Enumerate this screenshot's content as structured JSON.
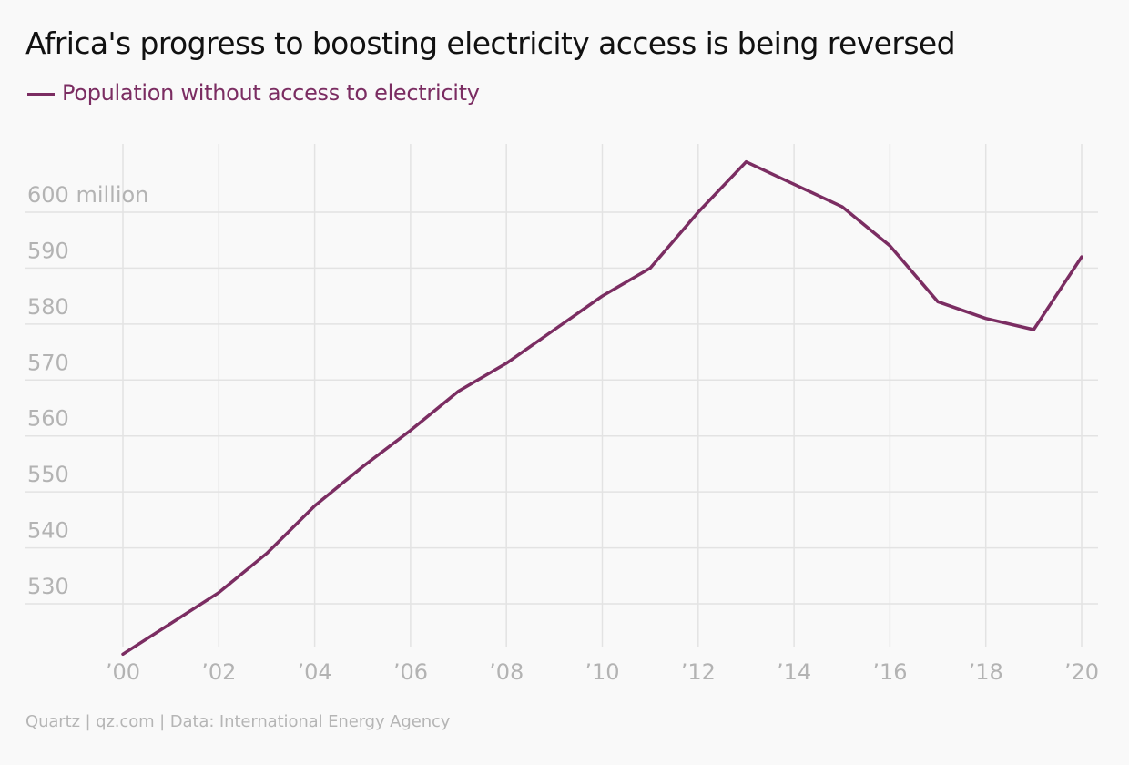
{
  "title": "Africa's progress to boosting electricity access is being reversed",
  "footer": "Quartz | qz.com | Data: International Energy Agency",
  "colors": {
    "series": "#7b2d62",
    "grid": "#e3e3e3",
    "tick_label": "#b3b3b3",
    "background": "#f9f9f9"
  },
  "chart_data": {
    "type": "line",
    "title": "Africa's progress to boosting electricity access is being reversed",
    "xlabel": "",
    "ylabel": "",
    "x": [
      2000,
      2001,
      2002,
      2003,
      2004,
      2005,
      2006,
      2007,
      2008,
      2009,
      2010,
      2011,
      2012,
      2013,
      2014,
      2015,
      2016,
      2017,
      2018,
      2019,
      2020
    ],
    "series": [
      {
        "name": "Population without access to electricity",
        "values": [
          521,
          526.5,
          532,
          539,
          547.5,
          554.5,
          561,
          568,
          573,
          579,
          585,
          590,
          600,
          609,
          605,
          601,
          594,
          584,
          581,
          579,
          592
        ]
      }
    ],
    "xlim": [
      2000,
      2020
    ],
    "ylim": [
      521,
      613
    ],
    "x_ticks": [
      2000,
      2002,
      2004,
      2006,
      2008,
      2010,
      2012,
      2014,
      2016,
      2018,
      2020
    ],
    "x_tick_labels": [
      "’00",
      "’02",
      "’04",
      "’06",
      "’08",
      "’10",
      "’12",
      "’14",
      "’16",
      "’18",
      "’20"
    ],
    "y_ticks": [
      530,
      540,
      550,
      560,
      570,
      580,
      590,
      600
    ],
    "y_tick_labels": [
      "530",
      "540",
      "550",
      "560",
      "570",
      "580",
      "590",
      "600 million"
    ],
    "grid": true,
    "legend": "top-left"
  }
}
